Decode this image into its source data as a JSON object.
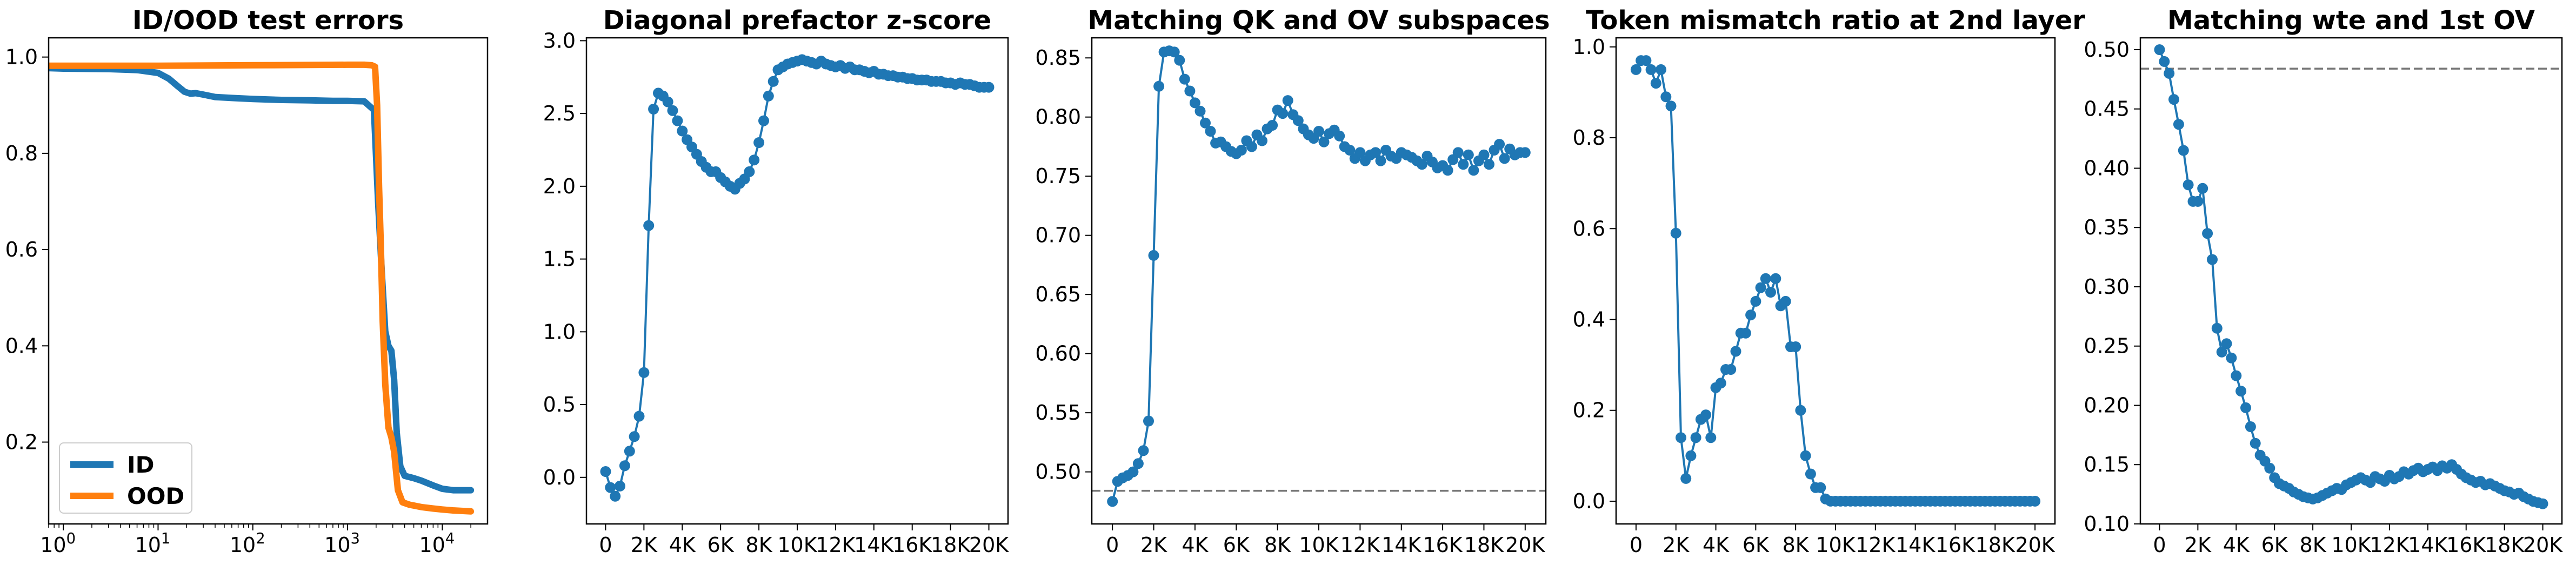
{
  "figure": {
    "colors": {
      "blue": "#1f77b4",
      "orange": "#ff7f0e",
      "axis": "#000000",
      "refline": "#777777"
    }
  },
  "chart_data": [
    {
      "type": "line",
      "title": "ID/OOD test errors",
      "xlabel": "",
      "ylabel": "",
      "xscale": "log",
      "xlim": [
        0.7,
        30000
      ],
      "ylim": [
        0.03,
        1.04
      ],
      "xticks": [
        1,
        10,
        100,
        1000,
        10000
      ],
      "xtick_labels": [
        "10^0",
        "10^1",
        "10^2",
        "10^3",
        "10^4"
      ],
      "yticks": [
        0.2,
        0.4,
        0.6,
        0.8,
        1.0
      ],
      "ytick_labels": [
        "0.2",
        "0.4",
        "0.6",
        "0.8",
        "1.0"
      ],
      "legend": {
        "placement": "lower-left",
        "entries": [
          "ID",
          "OOD"
        ]
      },
      "series": [
        {
          "name": "ID",
          "color": "#1f77b4",
          "x": [
            0.7,
            1,
            3,
            6,
            10,
            13,
            16,
            19,
            22,
            25,
            30,
            40,
            60,
            100,
            200,
            400,
            700,
            1000,
            1500,
            1900,
            2100,
            2300,
            2500,
            2700,
            2900,
            3100,
            3300,
            3600,
            4000,
            5000,
            6000,
            8000,
            10000,
            13000,
            16000,
            20000
          ],
          "y": [
            0.977,
            0.976,
            0.975,
            0.973,
            0.967,
            0.955,
            0.94,
            0.928,
            0.924,
            0.925,
            0.922,
            0.917,
            0.915,
            0.913,
            0.911,
            0.91,
            0.909,
            0.909,
            0.908,
            0.89,
            0.7,
            0.55,
            0.43,
            0.4,
            0.39,
            0.33,
            0.22,
            0.15,
            0.13,
            0.125,
            0.12,
            0.11,
            0.103,
            0.1,
            0.1,
            0.1
          ]
        },
        {
          "name": "OOD",
          "color": "#ff7f0e",
          "x": [
            0.7,
            1,
            10,
            100,
            1000,
            1500,
            1800,
            1950,
            2050,
            2150,
            2250,
            2350,
            2500,
            2700,
            2900,
            3100,
            3400,
            3800,
            4500,
            6000,
            8000,
            10000,
            13000,
            16000,
            20000
          ],
          "y": [
            0.982,
            0.982,
            0.982,
            0.983,
            0.984,
            0.984,
            0.983,
            0.98,
            0.9,
            0.73,
            0.6,
            0.45,
            0.32,
            0.23,
            0.21,
            0.18,
            0.1,
            0.075,
            0.07,
            0.065,
            0.062,
            0.06,
            0.058,
            0.057,
            0.056
          ]
        }
      ]
    },
    {
      "type": "line",
      "title": "Diagonal prefactor z-score",
      "xlabel": "",
      "ylabel": "",
      "xlim": [
        -1000,
        21000
      ],
      "ylim": [
        -0.32,
        3.02
      ],
      "xticks": [
        0,
        2000,
        4000,
        6000,
        8000,
        10000,
        12000,
        14000,
        16000,
        18000,
        20000
      ],
      "xtick_labels": [
        "0",
        "2K",
        "4K",
        "6K",
        "8K",
        "10K",
        "12K",
        "14K",
        "16K",
        "18K",
        "20K"
      ],
      "yticks": [
        0,
        0.5,
        1.0,
        1.5,
        2.0,
        2.5,
        3.0
      ],
      "ytick_labels": [
        "0.0",
        "0.5",
        "1.0",
        "1.5",
        "2.0",
        "2.5",
        "3.0"
      ],
      "series": [
        {
          "name": "",
          "color": "#1f77b4",
          "x": [
            0,
            250,
            500,
            750,
            1000,
            1250,
            1500,
            1750,
            2000,
            2250,
            2500,
            2750,
            3000,
            3250,
            3500,
            3750,
            4000,
            4250,
            4500,
            4750,
            5000,
            5250,
            5500,
            5750,
            6000,
            6250,
            6500,
            6750,
            7000,
            7250,
            7500,
            7750,
            8000,
            8250,
            8500,
            8750,
            9000,
            9250,
            9500,
            9750,
            10000,
            10250,
            10500,
            10750,
            11000,
            11250,
            11500,
            11750,
            12000,
            12250,
            12500,
            12750,
            13000,
            13250,
            13500,
            13750,
            14000,
            14250,
            14500,
            14750,
            15000,
            15250,
            15500,
            15750,
            16000,
            16250,
            16500,
            16750,
            17000,
            17250,
            17500,
            17750,
            18000,
            18250,
            18500,
            18750,
            19000,
            19250,
            19500,
            19750,
            20000
          ],
          "y": [
            0.04,
            -0.07,
            -0.13,
            -0.06,
            0.08,
            0.18,
            0.28,
            0.42,
            0.72,
            1.73,
            2.53,
            2.64,
            2.62,
            2.58,
            2.52,
            2.45,
            2.38,
            2.32,
            2.27,
            2.22,
            2.17,
            2.13,
            2.1,
            2.1,
            2.06,
            2.03,
            2.0,
            1.98,
            2.02,
            2.05,
            2.1,
            2.18,
            2.3,
            2.45,
            2.62,
            2.72,
            2.8,
            2.82,
            2.84,
            2.85,
            2.86,
            2.87,
            2.86,
            2.85,
            2.84,
            2.86,
            2.84,
            2.83,
            2.82,
            2.83,
            2.81,
            2.82,
            2.8,
            2.8,
            2.79,
            2.78,
            2.79,
            2.77,
            2.77,
            2.76,
            2.76,
            2.75,
            2.75,
            2.74,
            2.74,
            2.73,
            2.73,
            2.73,
            2.72,
            2.72,
            2.72,
            2.71,
            2.71,
            2.7,
            2.71,
            2.7,
            2.7,
            2.69,
            2.68,
            2.68,
            2.68
          ]
        }
      ]
    },
    {
      "type": "line",
      "title": "Matching QK and OV subspaces",
      "xlabel": "",
      "ylabel": "",
      "xlim": [
        -1000,
        21000
      ],
      "ylim": [
        0.456,
        0.867
      ],
      "xticks": [
        0,
        2000,
        4000,
        6000,
        8000,
        10000,
        12000,
        14000,
        16000,
        18000,
        20000
      ],
      "xtick_labels": [
        "0",
        "2K",
        "4K",
        "6K",
        "8K",
        "10K",
        "12K",
        "14K",
        "16K",
        "18K",
        "20K"
      ],
      "yticks": [
        0.5,
        0.55,
        0.6,
        0.65,
        0.7,
        0.75,
        0.8,
        0.85
      ],
      "ytick_labels": [
        "0.50",
        "0.55",
        "0.60",
        "0.65",
        "0.70",
        "0.75",
        "0.80",
        "0.85"
      ],
      "reference_line": {
        "y": 0.484,
        "style": "dashed",
        "color": "#777777"
      },
      "series": [
        {
          "name": "",
          "color": "#1f77b4",
          "x": [
            0,
            250,
            500,
            750,
            1000,
            1250,
            1500,
            1750,
            2000,
            2250,
            2500,
            2750,
            3000,
            3250,
            3500,
            3750,
            4000,
            4250,
            4500,
            4750,
            5000,
            5250,
            5500,
            5750,
            6000,
            6250,
            6500,
            6750,
            7000,
            7250,
            7500,
            7750,
            8000,
            8250,
            8500,
            8750,
            9000,
            9250,
            9500,
            9750,
            10000,
            10250,
            10500,
            10750,
            11000,
            11250,
            11500,
            11750,
            12000,
            12250,
            12500,
            12750,
            13000,
            13250,
            13500,
            13750,
            14000,
            14250,
            14500,
            14750,
            15000,
            15250,
            15500,
            15750,
            16000,
            16250,
            16500,
            16750,
            17000,
            17250,
            17500,
            17750,
            18000,
            18250,
            18500,
            18750,
            19000,
            19250,
            19500,
            19750,
            20000
          ],
          "y": [
            0.475,
            0.492,
            0.495,
            0.497,
            0.5,
            0.507,
            0.518,
            0.543,
            0.683,
            0.826,
            0.855,
            0.856,
            0.855,
            0.848,
            0.832,
            0.822,
            0.812,
            0.805,
            0.795,
            0.788,
            0.778,
            0.779,
            0.775,
            0.771,
            0.769,
            0.772,
            0.78,
            0.775,
            0.785,
            0.78,
            0.79,
            0.793,
            0.806,
            0.803,
            0.814,
            0.802,
            0.797,
            0.79,
            0.785,
            0.782,
            0.788,
            0.779,
            0.786,
            0.789,
            0.784,
            0.775,
            0.772,
            0.765,
            0.77,
            0.763,
            0.768,
            0.77,
            0.763,
            0.772,
            0.767,
            0.765,
            0.77,
            0.768,
            0.766,
            0.763,
            0.76,
            0.767,
            0.762,
            0.757,
            0.759,
            0.755,
            0.764,
            0.77,
            0.76,
            0.768,
            0.755,
            0.763,
            0.768,
            0.76,
            0.772,
            0.777,
            0.765,
            0.773,
            0.768,
            0.77,
            0.77
          ]
        }
      ]
    },
    {
      "type": "line",
      "title": "Token mismatch ratio at 2nd layer",
      "xlabel": "",
      "ylabel": "",
      "xlim": [
        -1000,
        21000
      ],
      "ylim": [
        -0.05,
        1.02
      ],
      "xticks": [
        0,
        2000,
        4000,
        6000,
        8000,
        10000,
        12000,
        14000,
        16000,
        18000,
        20000
      ],
      "xtick_labels": [
        "0",
        "2K",
        "4K",
        "6K",
        "8K",
        "10K",
        "12K",
        "14K",
        "16K",
        "18K",
        "20K"
      ],
      "yticks": [
        0,
        0.2,
        0.4,
        0.6,
        0.8,
        1.0
      ],
      "ytick_labels": [
        "0.0",
        "0.2",
        "0.4",
        "0.6",
        "0.8",
        "1.0"
      ],
      "series": [
        {
          "name": "",
          "color": "#1f77b4",
          "x": [
            0,
            250,
            500,
            750,
            1000,
            1250,
            1500,
            1750,
            2000,
            2250,
            2500,
            2750,
            3000,
            3250,
            3500,
            3750,
            4000,
            4250,
            4500,
            4750,
            5000,
            5250,
            5500,
            5750,
            6000,
            6250,
            6500,
            6750,
            7000,
            7250,
            7500,
            7750,
            8000,
            8250,
            8500,
            8750,
            9000,
            9250,
            9500,
            9750,
            10000,
            10250,
            10500,
            10750,
            11000,
            11250,
            11500,
            11750,
            12000,
            12250,
            12500,
            12750,
            13000,
            13250,
            13500,
            13750,
            14000,
            14250,
            14500,
            14750,
            15000,
            15250,
            15500,
            15750,
            16000,
            16250,
            16500,
            16750,
            17000,
            17250,
            17500,
            17750,
            18000,
            18250,
            18500,
            18750,
            19000,
            19250,
            19500,
            19750,
            20000
          ],
          "y": [
            0.95,
            0.97,
            0.97,
            0.95,
            0.92,
            0.95,
            0.89,
            0.87,
            0.59,
            0.14,
            0.05,
            0.1,
            0.14,
            0.18,
            0.19,
            0.14,
            0.25,
            0.26,
            0.29,
            0.29,
            0.33,
            0.37,
            0.37,
            0.41,
            0.44,
            0.47,
            0.49,
            0.46,
            0.49,
            0.43,
            0.44,
            0.34,
            0.34,
            0.2,
            0.1,
            0.06,
            0.03,
            0.03,
            0.005,
            0,
            0,
            0,
            0,
            0,
            0,
            0,
            0,
            0,
            0,
            0,
            0,
            0,
            0,
            0,
            0,
            0,
            0,
            0,
            0,
            0,
            0,
            0,
            0,
            0,
            0,
            0,
            0,
            0,
            0,
            0,
            0,
            0,
            0,
            0,
            0,
            0,
            0,
            0,
            0,
            0,
            0
          ]
        }
      ]
    },
    {
      "type": "line",
      "title": "Matching wte and 1st OV",
      "xlabel": "",
      "ylabel": "",
      "xlim": [
        -1000,
        21000
      ],
      "ylim": [
        0.1,
        0.51
      ],
      "xticks": [
        0,
        2000,
        4000,
        6000,
        8000,
        10000,
        12000,
        14000,
        16000,
        18000,
        20000
      ],
      "xtick_labels": [
        "0",
        "2K",
        "4K",
        "6K",
        "8K",
        "10K",
        "12K",
        "14K",
        "16K",
        "18K",
        "20K"
      ],
      "yticks": [
        0.1,
        0.15,
        0.2,
        0.25,
        0.3,
        0.35,
        0.4,
        0.45,
        0.5
      ],
      "ytick_labels": [
        "0.10",
        "0.15",
        "0.20",
        "0.25",
        "0.30",
        "0.35",
        "0.40",
        "0.45",
        "0.50"
      ],
      "reference_line": {
        "y": 0.484,
        "style": "dashed",
        "color": "#777777"
      },
      "series": [
        {
          "name": "",
          "color": "#1f77b4",
          "x": [
            0,
            250,
            500,
            750,
            1000,
            1250,
            1500,
            1750,
            2000,
            2250,
            2500,
            2750,
            3000,
            3250,
            3500,
            3750,
            4000,
            4250,
            4500,
            4750,
            5000,
            5250,
            5500,
            5750,
            6000,
            6250,
            6500,
            6750,
            7000,
            7250,
            7500,
            7750,
            8000,
            8250,
            8500,
            8750,
            9000,
            9250,
            9500,
            9750,
            10000,
            10250,
            10500,
            10750,
            11000,
            11250,
            11500,
            11750,
            12000,
            12250,
            12500,
            12750,
            13000,
            13250,
            13500,
            13750,
            14000,
            14250,
            14500,
            14750,
            15000,
            15250,
            15500,
            15750,
            16000,
            16250,
            16500,
            16750,
            17000,
            17250,
            17500,
            17750,
            18000,
            18250,
            18500,
            18750,
            19000,
            19250,
            19500,
            19750,
            20000
          ],
          "y": [
            0.5,
            0.49,
            0.48,
            0.458,
            0.437,
            0.415,
            0.386,
            0.372,
            0.372,
            0.383,
            0.345,
            0.323,
            0.265,
            0.245,
            0.252,
            0.24,
            0.225,
            0.212,
            0.198,
            0.182,
            0.168,
            0.158,
            0.153,
            0.147,
            0.139,
            0.134,
            0.132,
            0.13,
            0.127,
            0.125,
            0.123,
            0.122,
            0.121,
            0.122,
            0.124,
            0.126,
            0.128,
            0.13,
            0.129,
            0.133,
            0.135,
            0.137,
            0.139,
            0.137,
            0.135,
            0.14,
            0.138,
            0.136,
            0.141,
            0.138,
            0.14,
            0.144,
            0.142,
            0.145,
            0.147,
            0.144,
            0.146,
            0.148,
            0.145,
            0.149,
            0.147,
            0.15,
            0.146,
            0.142,
            0.139,
            0.137,
            0.135,
            0.136,
            0.133,
            0.134,
            0.132,
            0.13,
            0.128,
            0.127,
            0.125,
            0.126,
            0.123,
            0.121,
            0.119,
            0.118,
            0.117
          ]
        }
      ]
    }
  ]
}
